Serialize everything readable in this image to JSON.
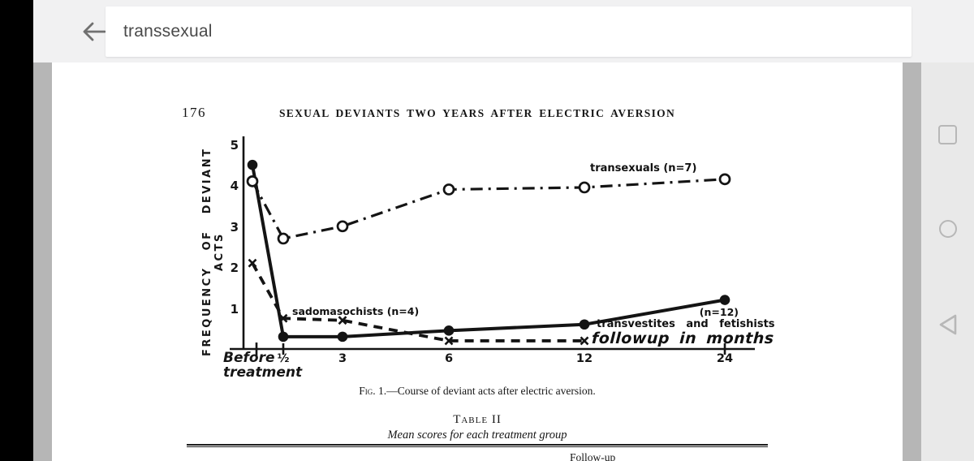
{
  "browser": {
    "search_query": "transsexual"
  },
  "android_nav": {
    "recents": "recents",
    "home": "home",
    "back": "back"
  },
  "page": {
    "page_number": "176",
    "running_title": "SEXUAL DEVIANTS TWO YEARS AFTER ELECTRIC AVERSION",
    "figure_caption_prefix": "Fig. 1.",
    "figure_caption_rest": "—Course of deviant acts after electric aversion.",
    "table_label": "Table II",
    "table_subtitle": "Mean scores for each treatment group",
    "table_partial_header": "Follow-up"
  },
  "chart_data": {
    "type": "line",
    "title": "Fig. 1.—Course of deviant acts after electric aversion.",
    "ylabel": "FREQUENCY OF DEVIANT ACTS",
    "xlabel": "followup in months",
    "ylim": [
      0,
      5
    ],
    "yticks": [
      5,
      4,
      3,
      2,
      1
    ],
    "grid": false,
    "legend_position": "inline-annotations",
    "categories": [
      "Before treatment",
      "½",
      "3",
      "6",
      "12",
      "24"
    ],
    "xtick_labels": [
      "½",
      "3",
      "6",
      "12",
      "24"
    ],
    "before_label": [
      "Before",
      "treatment"
    ],
    "series": [
      {
        "name": "transexuals",
        "n": 7,
        "marker": "open-circle",
        "line": "dash-dot",
        "values": [
          4.1,
          2.7,
          3.0,
          3.9,
          3.95,
          4.15
        ]
      },
      {
        "name": "transvestites and fetishists",
        "n": 12,
        "marker": "filled-circle",
        "line": "solid",
        "values": [
          4.5,
          0.3,
          0.3,
          0.45,
          0.6,
          1.2
        ]
      },
      {
        "name": "sadomasochists",
        "n": 4,
        "marker": "x",
        "line": "dashed",
        "values": [
          2.1,
          0.75,
          0.7,
          0.2,
          0.2,
          null
        ]
      }
    ],
    "annotations": {
      "transexuals_label": "transexuals (n=7)",
      "sadomasochists_label": "sadomasochists (n=4)",
      "transvestites_n_label": "(n=12)",
      "transvestites_label": "transvestites and fetishists"
    }
  }
}
